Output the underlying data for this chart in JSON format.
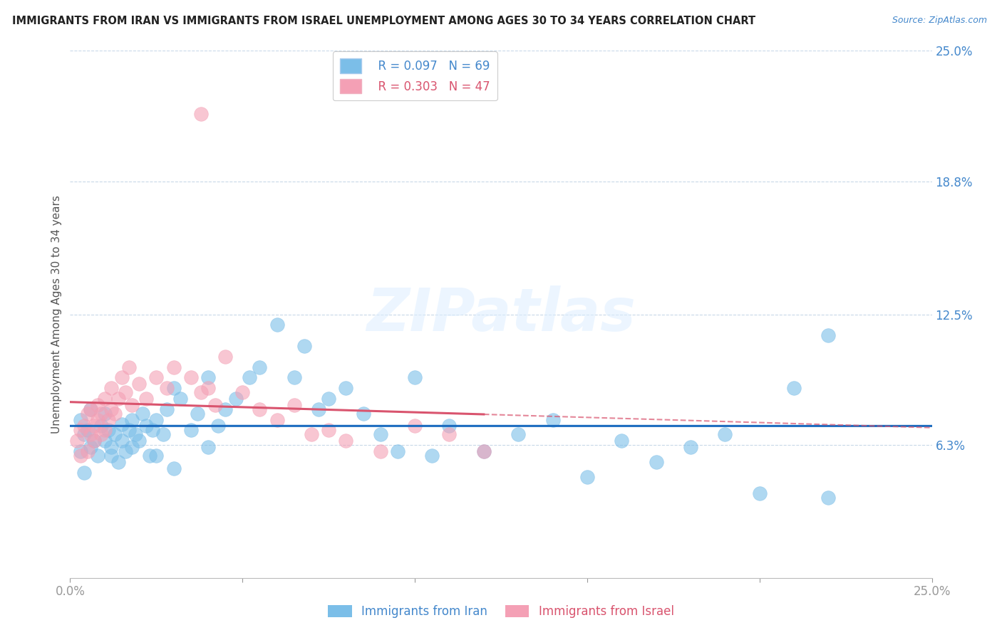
{
  "title": "IMMIGRANTS FROM IRAN VS IMMIGRANTS FROM ISRAEL UNEMPLOYMENT AMONG AGES 30 TO 34 YEARS CORRELATION CHART",
  "source": "Source: ZipAtlas.com",
  "ylabel": "Unemployment Among Ages 30 to 34 years",
  "xmin": 0.0,
  "xmax": 0.25,
  "ymin": 0.0,
  "ymax": 0.25,
  "iran_R": 0.097,
  "iran_N": 69,
  "israel_R": 0.303,
  "israel_N": 47,
  "iran_color": "#7bbee8",
  "israel_color": "#f4a0b5",
  "iran_line_color": "#1a6bbf",
  "israel_line_color": "#d9546e",
  "watermark": "ZIPatlas",
  "background_color": "#ffffff",
  "grid_color": "#c8d8e8",
  "iran_x": [
    0.003,
    0.003,
    0.004,
    0.004,
    0.005,
    0.006,
    0.006,
    0.007,
    0.008,
    0.009,
    0.01,
    0.01,
    0.011,
    0.012,
    0.012,
    0.013,
    0.014,
    0.015,
    0.015,
    0.016,
    0.017,
    0.018,
    0.018,
    0.019,
    0.02,
    0.021,
    0.022,
    0.023,
    0.024,
    0.025,
    0.027,
    0.028,
    0.03,
    0.032,
    0.035,
    0.037,
    0.04,
    0.043,
    0.045,
    0.048,
    0.052,
    0.055,
    0.06,
    0.065,
    0.068,
    0.072,
    0.075,
    0.08,
    0.085,
    0.09,
    0.095,
    0.1,
    0.105,
    0.11,
    0.12,
    0.13,
    0.14,
    0.15,
    0.16,
    0.17,
    0.18,
    0.19,
    0.2,
    0.21,
    0.22,
    0.025,
    0.03,
    0.04,
    0.22
  ],
  "iran_y": [
    0.075,
    0.06,
    0.068,
    0.05,
    0.07,
    0.062,
    0.08,
    0.065,
    0.058,
    0.072,
    0.065,
    0.078,
    0.07,
    0.062,
    0.058,
    0.068,
    0.055,
    0.065,
    0.073,
    0.06,
    0.07,
    0.075,
    0.062,
    0.068,
    0.065,
    0.078,
    0.072,
    0.058,
    0.07,
    0.075,
    0.068,
    0.08,
    0.09,
    0.085,
    0.07,
    0.078,
    0.095,
    0.072,
    0.08,
    0.085,
    0.095,
    0.1,
    0.12,
    0.095,
    0.11,
    0.08,
    0.085,
    0.09,
    0.078,
    0.068,
    0.06,
    0.095,
    0.058,
    0.072,
    0.06,
    0.068,
    0.075,
    0.048,
    0.065,
    0.055,
    0.062,
    0.068,
    0.04,
    0.09,
    0.038,
    0.058,
    0.052,
    0.062,
    0.115
  ],
  "israel_x": [
    0.002,
    0.003,
    0.003,
    0.004,
    0.005,
    0.005,
    0.006,
    0.006,
    0.007,
    0.007,
    0.008,
    0.008,
    0.009,
    0.009,
    0.01,
    0.01,
    0.011,
    0.012,
    0.012,
    0.013,
    0.014,
    0.015,
    0.016,
    0.017,
    0.018,
    0.02,
    0.022,
    0.025,
    0.028,
    0.03,
    0.035,
    0.038,
    0.04,
    0.042,
    0.045,
    0.05,
    0.055,
    0.06,
    0.065,
    0.07,
    0.075,
    0.08,
    0.09,
    0.1,
    0.11,
    0.12,
    0.038
  ],
  "israel_y": [
    0.065,
    0.058,
    0.07,
    0.072,
    0.06,
    0.078,
    0.068,
    0.08,
    0.072,
    0.065,
    0.075,
    0.082,
    0.068,
    0.078,
    0.07,
    0.085,
    0.075,
    0.08,
    0.09,
    0.078,
    0.085,
    0.095,
    0.088,
    0.1,
    0.082,
    0.092,
    0.085,
    0.095,
    0.09,
    0.1,
    0.095,
    0.088,
    0.09,
    0.082,
    0.105,
    0.088,
    0.08,
    0.075,
    0.082,
    0.068,
    0.07,
    0.065,
    0.06,
    0.072,
    0.068,
    0.06,
    0.22
  ]
}
